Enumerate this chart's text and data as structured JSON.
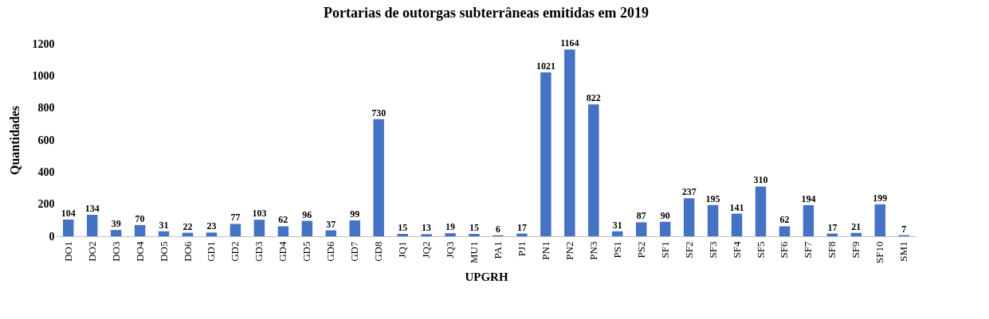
{
  "chart_data": {
    "type": "bar",
    "title": "Portarias de outorgas subterrâneas emitidas em 2019",
    "xlabel": "UPGRH",
    "ylabel": "Quantidades",
    "categories": [
      "DO1",
      "DO2",
      "DO3",
      "DO4",
      "DO5",
      "DO6",
      "GD1",
      "GD2",
      "GD3",
      "GD4",
      "GD5",
      "GD6",
      "GD7",
      "GD8",
      "JQ1",
      "JQ2",
      "JQ3",
      "MU1",
      "PA1",
      "PJ1",
      "PN1",
      "PN2",
      "PN3",
      "PS1",
      "PS2",
      "SF1",
      "SF2",
      "SF3",
      "SF4",
      "SF5",
      "SF6",
      "SF7",
      "SF8",
      "SF9",
      "SF10",
      "SM1"
    ],
    "values": [
      104,
      134,
      39,
      70,
      31,
      22,
      23,
      77,
      103,
      62,
      96,
      37,
      99,
      730,
      15,
      13,
      19,
      15,
      6,
      17,
      1021,
      1164,
      822,
      31,
      87,
      90,
      237,
      195,
      141,
      310,
      62,
      194,
      17,
      21,
      199,
      7
    ],
    "color": "#4472c4",
    "ylim": [
      0,
      1200
    ],
    "yticks": [
      0,
      200,
      400,
      600,
      800,
      1000,
      1200
    ],
    "data_labels": true,
    "grid": false
  }
}
